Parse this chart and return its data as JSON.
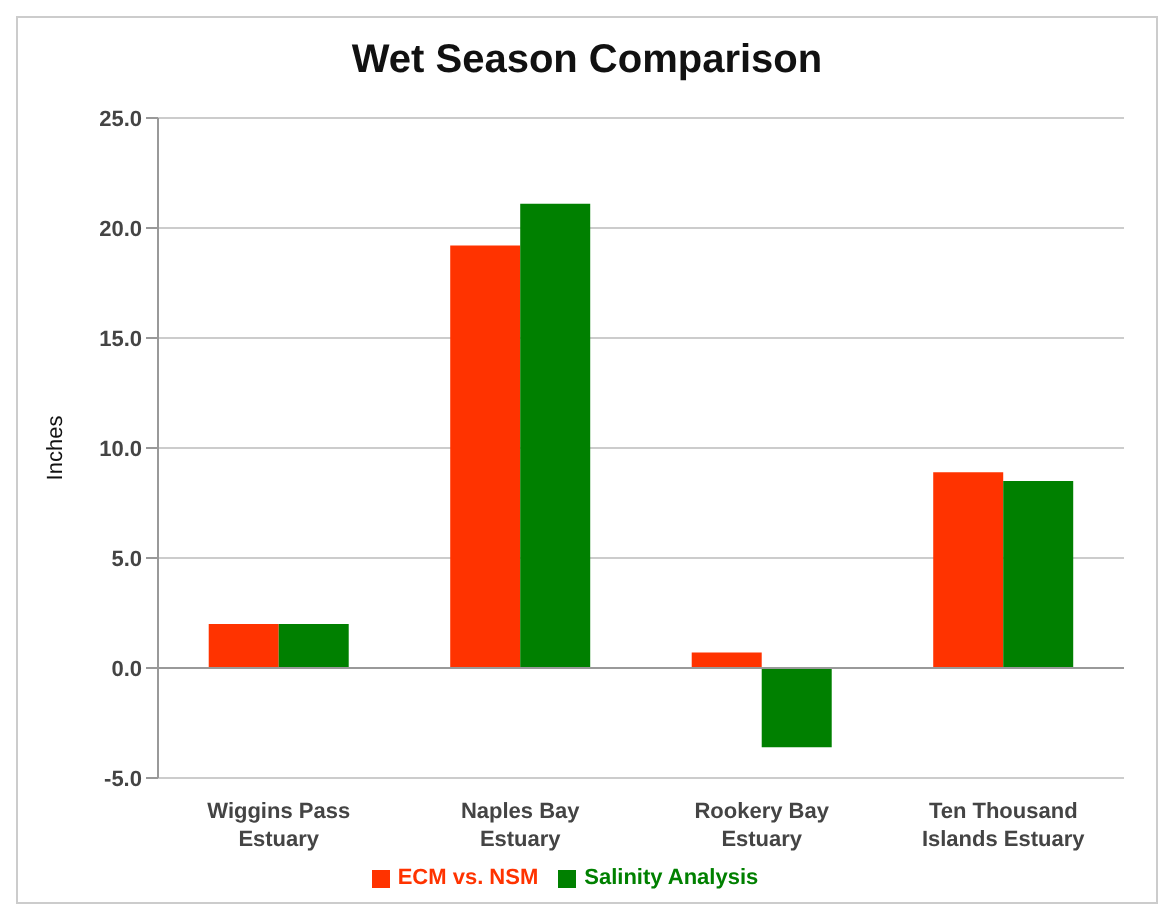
{
  "chart_data": {
    "type": "bar",
    "title": "Wet Season Comparison",
    "ylabel": "Inches",
    "categories": [
      "Wiggins Pass Estuary",
      "Naples Bay Estuary",
      "Rookery Bay Estuary",
      "Ten Thousand Islands Estuary"
    ],
    "series": [
      {
        "name": "ECM vs. NSM",
        "color": "#ff3300",
        "values": [
          2.0,
          19.2,
          0.7,
          8.9
        ]
      },
      {
        "name": "Salinity Analysis",
        "color": "#008000",
        "values": [
          2.0,
          21.1,
          -3.6,
          8.5
        ]
      }
    ],
    "ylim": [
      -5,
      25
    ],
    "yticks": [
      {
        "value": -5,
        "label": "-5.0"
      },
      {
        "value": 0,
        "label": "0.0"
      },
      {
        "value": 5,
        "label": "5.0"
      },
      {
        "value": 10,
        "label": "10.0"
      },
      {
        "value": 15,
        "label": "15.0"
      },
      {
        "value": 20,
        "label": "20.0"
      },
      {
        "value": 25,
        "label": "25.0"
      }
    ],
    "grid": "y",
    "legend": "bottom"
  }
}
